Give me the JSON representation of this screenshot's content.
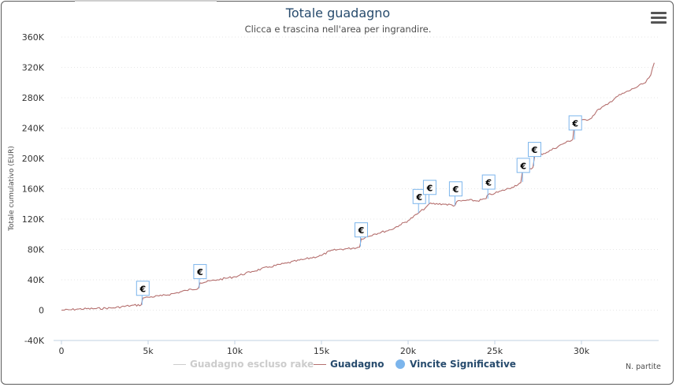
{
  "chart_data": {
    "type": "line",
    "title": "Totale guadagno",
    "subtitle": "Clicca e trascina nell'area per ingrandire.",
    "ylabel": "Totale cumulativo (EUR)",
    "xlabel": "N. partite",
    "xlim": [
      0,
      34200
    ],
    "ylim": [
      -40000,
      360000
    ],
    "x_ticks": [
      0,
      5000,
      10000,
      15000,
      20000,
      25000,
      30000
    ],
    "x_tick_labels": [
      "0",
      "5k",
      "10k",
      "15k",
      "20k",
      "25k",
      "30k"
    ],
    "y_ticks": [
      -40000,
      0,
      40000,
      80000,
      120000,
      160000,
      200000,
      240000,
      280000,
      320000,
      360000
    ],
    "y_tick_labels": [
      "-40K",
      "0",
      "40K",
      "80K",
      "120K",
      "160K",
      "200K",
      "240K",
      "280K",
      "320K",
      "360K"
    ],
    "grid": true,
    "legend_position": "bottom-center",
    "series": [
      {
        "name": "Guadagno escluso rake",
        "color": "#cccccc",
        "visible": false,
        "x": [],
        "y": []
      },
      {
        "name": "Guadagno",
        "color": "#b5706f",
        "x": [
          0,
          500,
          1000,
          2000,
          3000,
          4000,
          4600,
          4700,
          5000,
          5800,
          6500,
          7200,
          7900,
          8000,
          9000,
          10000,
          11000,
          12000,
          13000,
          14000,
          15000,
          15500,
          16000,
          16500,
          17200,
          17300,
          18000,
          19000,
          19500,
          20000,
          20600,
          21000,
          21200,
          22000,
          22700,
          22800,
          23500,
          24000,
          24500,
          24600,
          25000,
          26000,
          26500,
          26600,
          27200,
          27300,
          28000,
          29000,
          29500,
          29600,
          30500,
          31000,
          31500,
          32000,
          33000,
          33700,
          34000,
          34200
        ],
        "y": [
          0,
          500,
          1500,
          2000,
          3000,
          6000,
          7000,
          16000,
          17000,
          19000,
          22000,
          26000,
          29000,
          36000,
          40000,
          44000,
          51000,
          57000,
          62000,
          67000,
          72000,
          78000,
          80000,
          81000,
          83000,
          94000,
          100000,
          106000,
          112000,
          118000,
          128000,
          135000,
          140000,
          140000,
          138000,
          143000,
          145000,
          144000,
          147000,
          152000,
          154000,
          162000,
          168000,
          184000,
          188000,
          203000,
          208000,
          220000,
          225000,
          248000,
          252000,
          265000,
          271000,
          281000,
          292000,
          300000,
          310000,
          326000
        ]
      }
    ],
    "markers": {
      "name": "Vincite Significative",
      "color": "#7cb5ec",
      "label": "€",
      "points": [
        {
          "x": 4650,
          "y": 7000
        },
        {
          "x": 7950,
          "y": 29000
        },
        {
          "x": 17250,
          "y": 84000
        },
        {
          "x": 20600,
          "y": 128000
        },
        {
          "x": 21200,
          "y": 140000
        },
        {
          "x": 22700,
          "y": 138000
        },
        {
          "x": 24600,
          "y": 147000
        },
        {
          "x": 26600,
          "y": 169000
        },
        {
          "x": 27250,
          "y": 190000
        },
        {
          "x": 29600,
          "y": 225000
        }
      ]
    }
  }
}
